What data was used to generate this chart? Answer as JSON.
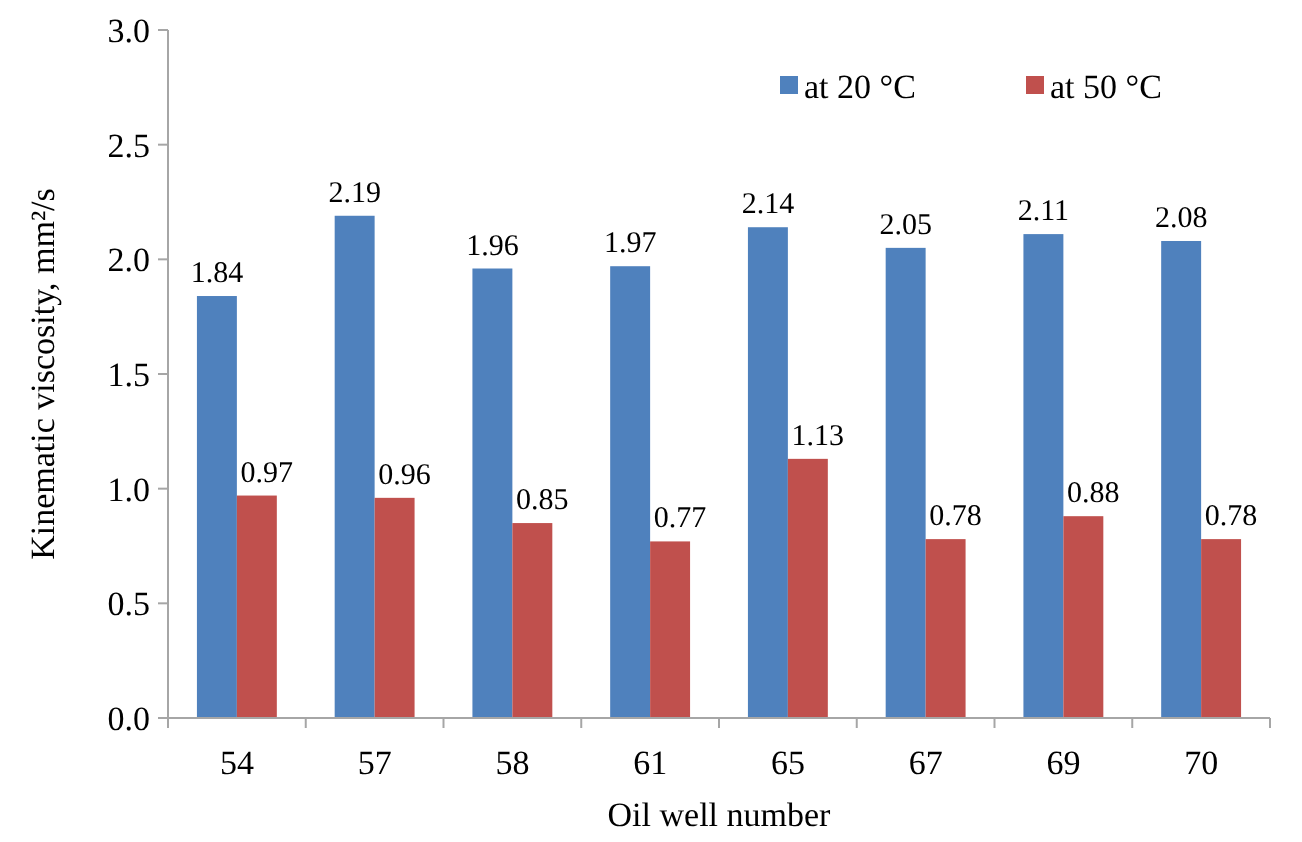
{
  "chart_data": {
    "type": "bar",
    "xlabel": "Oil well number",
    "ylabel": "Kinematic viscosity, mm²/s",
    "categories": [
      "54",
      "57",
      "58",
      "61",
      "65",
      "67",
      "69",
      "70"
    ],
    "series": [
      {
        "name": "at 20 °C",
        "color": "#4f81bd",
        "values": [
          1.84,
          2.19,
          1.96,
          1.97,
          2.14,
          2.05,
          2.11,
          2.08
        ]
      },
      {
        "name": "at 50 °C",
        "color": "#c0504d",
        "values": [
          0.97,
          0.96,
          0.85,
          0.77,
          1.13,
          0.78,
          0.88,
          0.78
        ]
      }
    ],
    "ylim": [
      0,
      3
    ],
    "yticks": [
      {
        "value": 0,
        "label": "0.0"
      },
      {
        "value": 0.5,
        "label": "0.5"
      },
      {
        "value": 1,
        "label": "1.0"
      },
      {
        "value": 1.5,
        "label": "1.5"
      },
      {
        "value": 2,
        "label": "2.0"
      },
      {
        "value": 2.5,
        "label": "2.5"
      },
      {
        "value": 3,
        "label": "3.0"
      }
    ],
    "data_labels": true,
    "legend": "top right",
    "grid": false
  }
}
